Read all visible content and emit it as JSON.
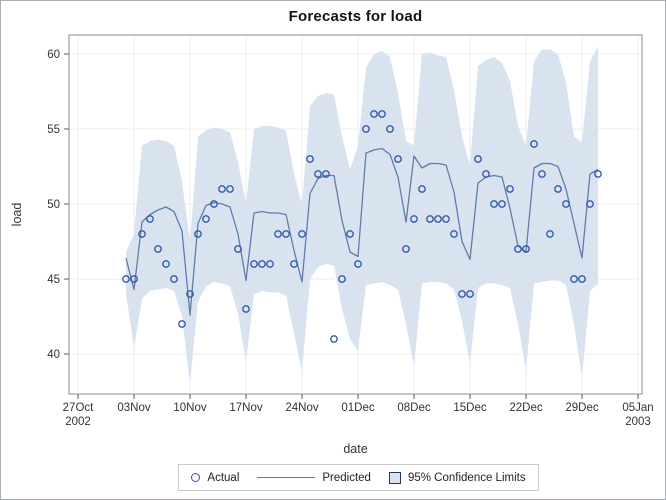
{
  "title": "Forecasts for load",
  "legend": {
    "actual_label": "Actual",
    "predicted_label": "Predicted",
    "ci_label": "95% Confidence Limits"
  },
  "colors": {
    "band_fill": "#d9e3f0",
    "predicted_line": "#607ca8",
    "actual_marker": "#315ba8",
    "grid": "#ececec",
    "wall_border": "#8e8e8e",
    "tick_mark": "#595959",
    "tick_text": "#333333",
    "axis_title_text": "#262626",
    "title_text": "#141414"
  },
  "chart_data": {
    "type": "line",
    "title": "Forecasts for load",
    "xlabel": "date",
    "ylabel": "load",
    "y_ticks": [
      40,
      45,
      50,
      55,
      60
    ],
    "ylim": [
      37.3,
      61.3
    ],
    "x_tick_labels": [
      "27Oct",
      "03Nov",
      "10Nov",
      "17Nov",
      "24Nov",
      "01Dec",
      "08Dec",
      "15Dec",
      "22Dec",
      "29Dec",
      "05Jan"
    ],
    "x_first_tick_sublabel": "2002",
    "x_last_tick_sublabel": "2003",
    "grid": true,
    "legend_position": "bottom",
    "frequency": "daily",
    "dates": [
      "02Nov",
      "03Nov",
      "04Nov",
      "05Nov",
      "06Nov",
      "07Nov",
      "08Nov",
      "09Nov",
      "10Nov",
      "11Nov",
      "12Nov",
      "13Nov",
      "14Nov",
      "15Nov",
      "16Nov",
      "17Nov",
      "18Nov",
      "19Nov",
      "20Nov",
      "21Nov",
      "22Nov",
      "23Nov",
      "24Nov",
      "25Nov",
      "26Nov",
      "27Nov",
      "28Nov",
      "29Nov",
      "30Nov",
      "01Dec",
      "02Dec",
      "03Dec",
      "04Dec",
      "05Dec",
      "06Dec",
      "07Dec",
      "08Dec",
      "09Dec",
      "10Dec",
      "11Dec",
      "12Dec",
      "13Dec",
      "14Dec",
      "15Dec",
      "16Dec",
      "17Dec",
      "18Dec",
      "19Dec",
      "20Dec",
      "21Dec",
      "22Dec",
      "23Dec",
      "24Dec",
      "25Dec",
      "26Dec",
      "27Dec",
      "28Dec",
      "29Dec",
      "30Dec",
      "31Dec"
    ],
    "year_start": "2002",
    "series": [
      {
        "name": "Actual",
        "style": "scatter-circle",
        "values": [
          45,
          45,
          48,
          49,
          47,
          46,
          45,
          42,
          44,
          48,
          49,
          50,
          51,
          51,
          47,
          43,
          46,
          46,
          46,
          48,
          48,
          46,
          48,
          53,
          52,
          52,
          41,
          45,
          48,
          46,
          55,
          56,
          56,
          55,
          53,
          47,
          49,
          51,
          49,
          49,
          49,
          48,
          44,
          44,
          53,
          52,
          50,
          50,
          51,
          47,
          47,
          54,
          52,
          48,
          51,
          50,
          45,
          45,
          50,
          52
        ]
      },
      {
        "name": "Predicted",
        "style": "line",
        "values": [
          46.4,
          44.3,
          48.8,
          49.3,
          49.6,
          49.8,
          49.5,
          48.2,
          42.6,
          48.7,
          49.9,
          50.1,
          50.0,
          49.8,
          48.0,
          44.9,
          49.4,
          49.5,
          49.4,
          49.4,
          49.3,
          46.9,
          44.8,
          50.7,
          51.7,
          51.9,
          51.9,
          48.9,
          46.8,
          46.5,
          53.4,
          53.6,
          53.7,
          53.3,
          51.8,
          48.8,
          53.2,
          52.4,
          52.7,
          52.7,
          52.6,
          50.8,
          47.5,
          46.3,
          51.4,
          51.8,
          51.9,
          51.8,
          49.7,
          47.2,
          46.8,
          52.4,
          52.7,
          52.7,
          52.5,
          51.0,
          48.7,
          46.4,
          52.0,
          52.3
        ]
      },
      {
        "name": "95% Confidence Limits upper",
        "style": "band-upper",
        "values": [
          46.8,
          48.0,
          53.9,
          54.2,
          54.3,
          54.2,
          53.9,
          51.5,
          47.5,
          54.5,
          54.9,
          55.1,
          55.0,
          54.8,
          52.8,
          50.0,
          55.0,
          55.2,
          55.2,
          55.1,
          54.9,
          52.0,
          50.0,
          56.5,
          57.2,
          57.4,
          57.3,
          54.5,
          52.3,
          53.9,
          59.1,
          60.0,
          60.2,
          59.8,
          57.4,
          54.2,
          53.9,
          60.0,
          60.1,
          59.9,
          59.8,
          57.6,
          54.5,
          52.6,
          59.2,
          59.6,
          59.8,
          59.4,
          58.2,
          55.2,
          53.9,
          59.5,
          60.3,
          60.3,
          60.0,
          58.1,
          54.5,
          54.1,
          59.5,
          60.5
        ]
      },
      {
        "name": "95% Confidence Limits lower",
        "style": "band-lower",
        "values": [
          44.0,
          40.4,
          43.7,
          44.2,
          44.3,
          44.4,
          44.2,
          42.5,
          38.0,
          43.5,
          44.5,
          44.8,
          44.7,
          44.5,
          42.7,
          39.5,
          44.0,
          44.2,
          44.1,
          44.1,
          43.9,
          41.4,
          38.8,
          45.0,
          45.8,
          46.0,
          45.9,
          43.0,
          41.0,
          40.2,
          44.6,
          44.7,
          44.8,
          44.6,
          44.3,
          42.0,
          39.2,
          44.7,
          44.8,
          44.8,
          44.7,
          44.3,
          42.2,
          39.4,
          44.4,
          44.7,
          44.7,
          44.6,
          44.4,
          42.0,
          38.9,
          44.7,
          44.8,
          44.9,
          44.9,
          44.6,
          42.0,
          38.4,
          44.2,
          44.7
        ]
      }
    ]
  }
}
